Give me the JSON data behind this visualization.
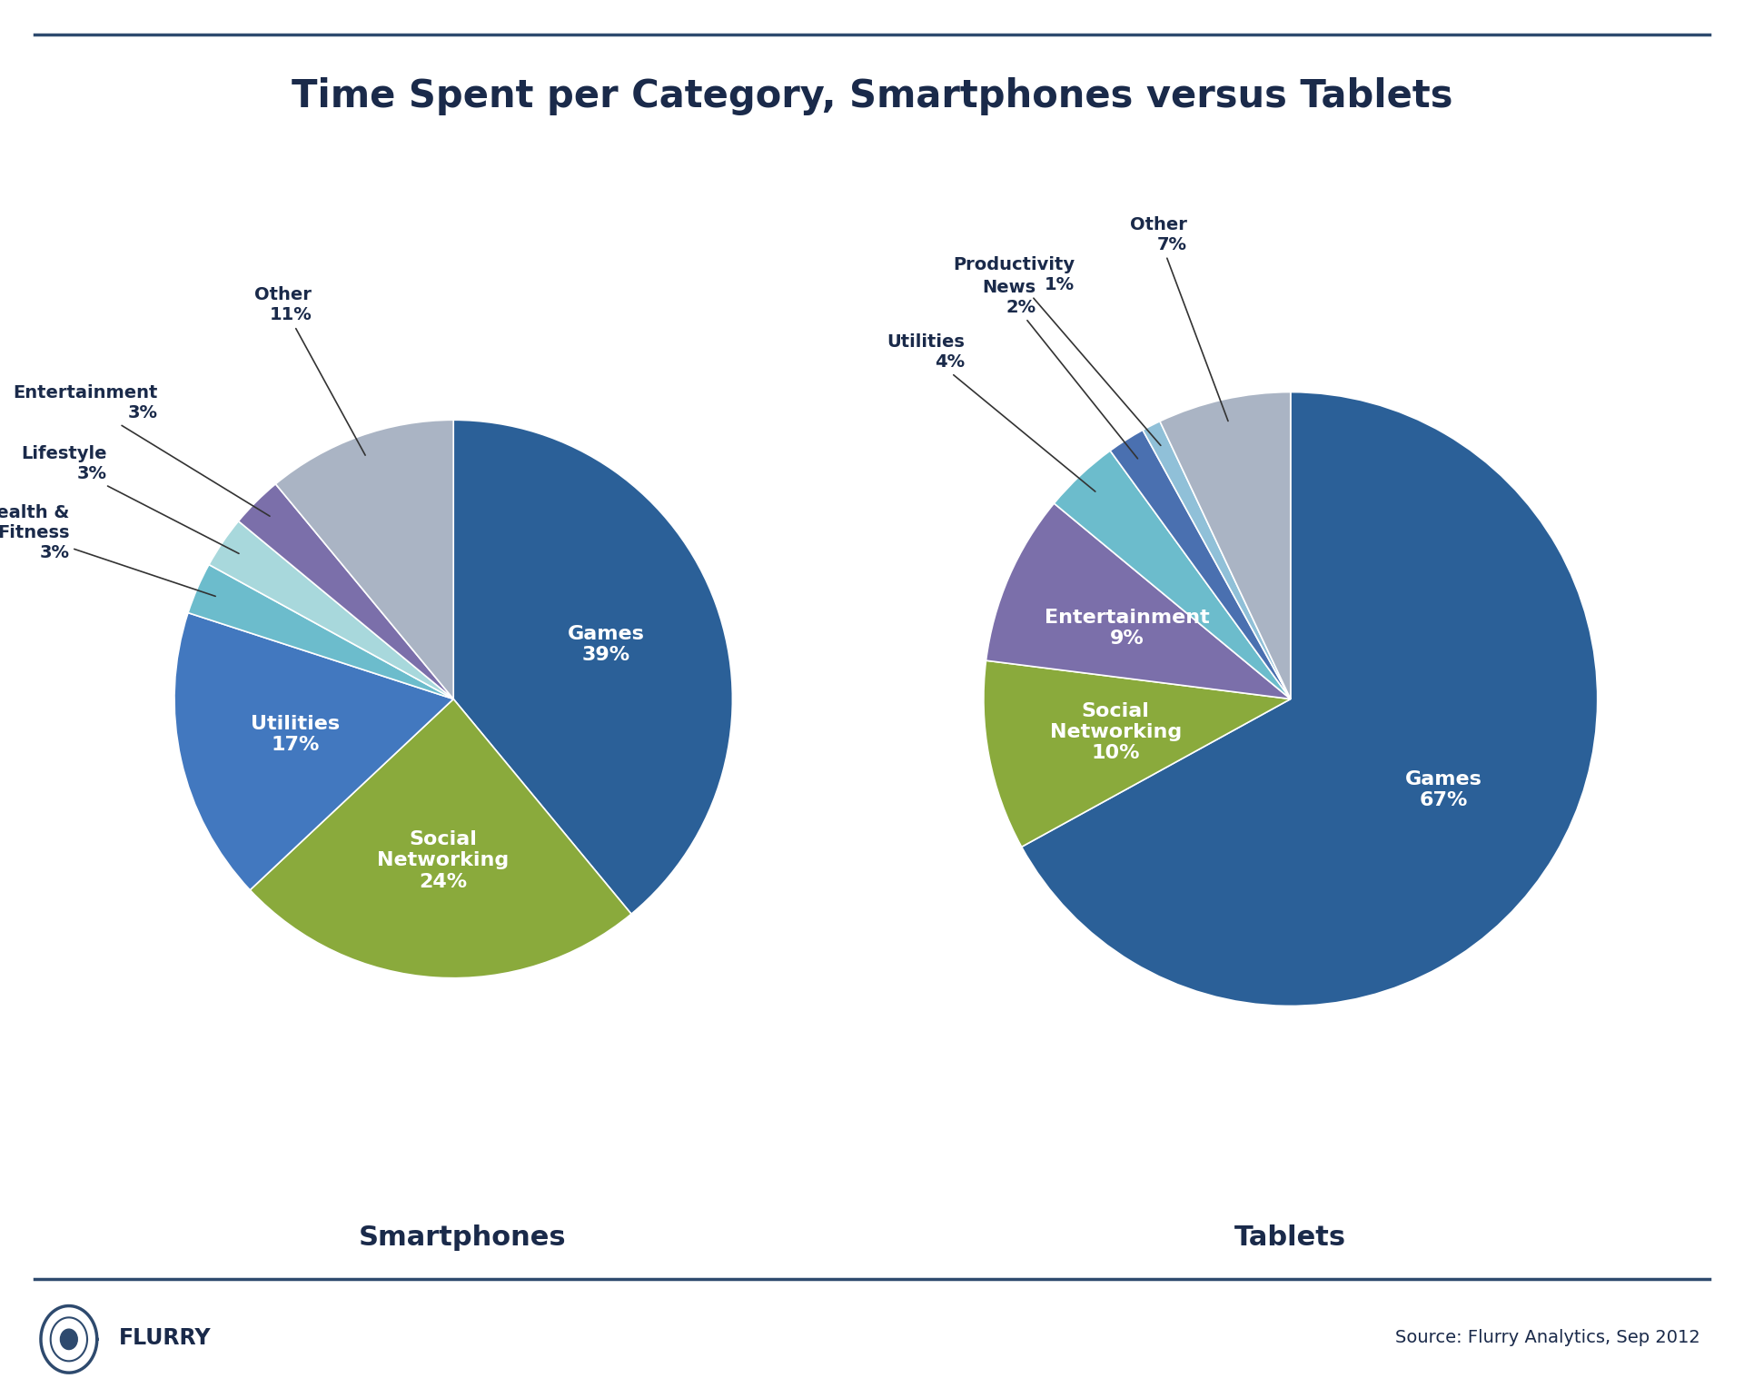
{
  "title": "Time Spent per Category, Smartphones versus Tablets",
  "title_fontsize": 30,
  "background_color": "#ffffff",
  "border_color": "#2e4a6e",
  "smartphones": {
    "label": "Smartphones",
    "slices": [
      {
        "label": "Games",
        "value": 39,
        "color": "#2b6098",
        "inner": true
      },
      {
        "label": "Social\nNetworking",
        "value": 24,
        "color": "#8aaa3c",
        "inner": true
      },
      {
        "label": "Utilities",
        "value": 17,
        "color": "#4278bf",
        "inner": true
      },
      {
        "label": "Health &\nFitness",
        "value": 3,
        "color": "#6cbccc",
        "inner": false
      },
      {
        "label": "Lifestyle",
        "value": 3,
        "color": "#a8d8dc",
        "inner": false
      },
      {
        "label": "Entertainment",
        "value": 3,
        "color": "#7b6faa",
        "inner": false
      },
      {
        "label": "Other",
        "value": 11,
        "color": "#aab4c4",
        "inner": false
      }
    ],
    "startangle": 90
  },
  "tablets": {
    "label": "Tablets",
    "slices": [
      {
        "label": "Games",
        "value": 67,
        "color": "#2b6098",
        "inner": true
      },
      {
        "label": "Social\nNetworking",
        "value": 10,
        "color": "#8aaa3c",
        "inner": true
      },
      {
        "label": "Entertainment",
        "value": 9,
        "color": "#7b6faa",
        "inner": true
      },
      {
        "label": "Utilities",
        "value": 4,
        "color": "#6cbccc",
        "inner": false
      },
      {
        "label": "News",
        "value": 2,
        "color": "#4a70b0",
        "inner": false
      },
      {
        "label": "Productivity",
        "value": 1,
        "color": "#90c0d8",
        "inner": false
      },
      {
        "label": "Other",
        "value": 7,
        "color": "#aab4c4",
        "inner": false
      }
    ],
    "startangle": 90
  },
  "footer_text": "Source: Flurry Analytics, Sep 2012",
  "footer_brand": "FLURRY",
  "inner_label_fontsize": 16,
  "outer_label_fontsize": 14,
  "subtitle_fontsize": 22
}
